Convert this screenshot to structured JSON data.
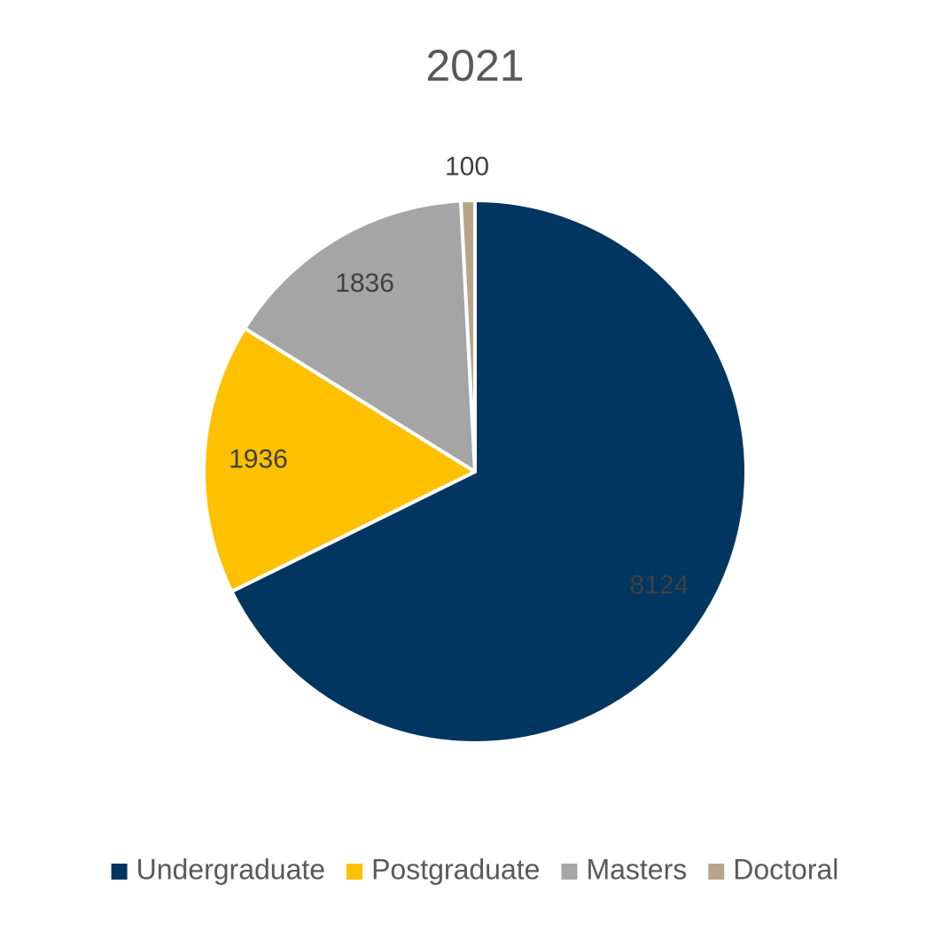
{
  "chart_data": {
    "type": "pie",
    "title": "2021",
    "categories": [
      "Undergraduate",
      "Postgraduate",
      "Masters",
      "Doctoral"
    ],
    "values": [
      8124,
      1936,
      1836,
      100
    ],
    "colors": [
      "#003660",
      "#FFC000",
      "#A5A5A5",
      "#B5A58A"
    ],
    "legend": "bottom"
  }
}
